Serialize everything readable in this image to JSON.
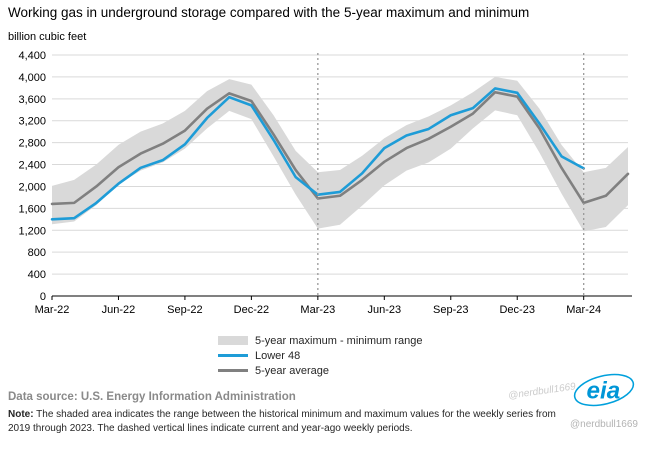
{
  "title": "Working gas in underground storage compared with the 5-year maximum and minimum",
  "y_axis_unit": "billion cubic feet",
  "legend": {
    "items": [
      {
        "label": "5-year maximum - minimum range",
        "swatch": "band",
        "color": "#d9d9d9"
      },
      {
        "label": "Lower 48",
        "swatch": "line",
        "color": "#1e9cd7"
      },
      {
        "label": "5-year average",
        "swatch": "line",
        "color": "#808080"
      }
    ]
  },
  "footer": {
    "data_source_label": "Data source:",
    "data_source_text": "U.S. Energy Information Administration",
    "note_label": "Note:",
    "note_line1": "The shaded area indicates the range between the historical minimum and maximum values for the weekly series from 2019",
    "note_line2": "through 2023. The dashed vertical lines indicate current and year-ago weekly periods."
  },
  "logo_text": "eia",
  "watermark": "@nerdbull1669",
  "chart_data": {
    "type": "line",
    "title": "Working gas in underground storage compared with the 5-year maximum and minimum",
    "ylabel": "billion cubic feet",
    "ylim": [
      0,
      4400
    ],
    "grid": true,
    "legend_position": "bottom",
    "months": [
      "Mar-22",
      "Apr-22",
      "May-22",
      "Jun-22",
      "Jul-22",
      "Aug-22",
      "Sep-22",
      "Oct-22",
      "Nov-22",
      "Dec-22",
      "Jan-23",
      "Feb-23",
      "Mar-23",
      "Apr-23",
      "May-23",
      "Jun-23",
      "Jul-23",
      "Aug-23",
      "Sep-23",
      "Oct-23",
      "Nov-23",
      "Dec-23",
      "Jan-24",
      "Feb-24",
      "Mar-24",
      "Apr-24",
      "May-24"
    ],
    "y_ticks": [
      0,
      400,
      800,
      1200,
      1600,
      2000,
      2400,
      2800,
      3200,
      3600,
      4000,
      4400
    ],
    "y_tick_labels": [
      "0",
      "400",
      "800",
      "1,200",
      "1,600",
      "2,000",
      "2,400",
      "2,800",
      "3,200",
      "3,600",
      "4,000",
      "4,400"
    ],
    "x_ticks": [
      {
        "i": 0,
        "label": "Mar-22"
      },
      {
        "i": 3,
        "label": "Jun-22"
      },
      {
        "i": 6,
        "label": "Sep-22"
      },
      {
        "i": 9,
        "label": "Dec-22"
      },
      {
        "i": 12,
        "label": "Mar-23"
      },
      {
        "i": 15,
        "label": "Jun-23"
      },
      {
        "i": 18,
        "label": "Sep-23"
      },
      {
        "i": 21,
        "label": "Dec-23"
      },
      {
        "i": 24,
        "label": "Mar-24"
      }
    ],
    "vline_month_indices": [
      12,
      24
    ],
    "vline_color": "#999999",
    "series": [
      {
        "id": "band",
        "name": "5-year maximum - minimum range",
        "type": "band",
        "color": "#d9d9d9",
        "upper": [
          2010,
          2120,
          2400,
          2760,
          3000,
          3150,
          3380,
          3740,
          3960,
          3860,
          3300,
          2650,
          2260,
          2300,
          2560,
          2880,
          3120,
          3280,
          3480,
          3720,
          4000,
          3930,
          3420,
          2760,
          2260,
          2340,
          2720
        ],
        "lower": [
          1310,
          1360,
          1660,
          2040,
          2290,
          2440,
          2690,
          3060,
          3380,
          3230,
          2550,
          1850,
          1230,
          1300,
          1650,
          2020,
          2290,
          2440,
          2690,
          3060,
          3390,
          3300,
          2620,
          1870,
          1180,
          1260,
          1660
        ]
      },
      {
        "id": "avg",
        "name": "5-year average",
        "type": "line",
        "color": "#808080",
        "values": [
          1680,
          1700,
          2000,
          2350,
          2600,
          2780,
          3020,
          3420,
          3700,
          3560,
          2950,
          2300,
          1780,
          1830,
          2120,
          2450,
          2700,
          2870,
          3090,
          3330,
          3720,
          3640,
          3060,
          2340,
          1700,
          1830,
          2230
        ]
      },
      {
        "id": "lower48",
        "name": "Lower 48",
        "type": "line",
        "color": "#1e9cd7",
        "values": [
          1400,
          1420,
          1700,
          2050,
          2340,
          2480,
          2770,
          3250,
          3630,
          3480,
          2850,
          2170,
          1850,
          1900,
          2240,
          2700,
          2930,
          3050,
          3300,
          3430,
          3790,
          3710,
          3150,
          2550,
          2330,
          null,
          null
        ]
      }
    ]
  }
}
